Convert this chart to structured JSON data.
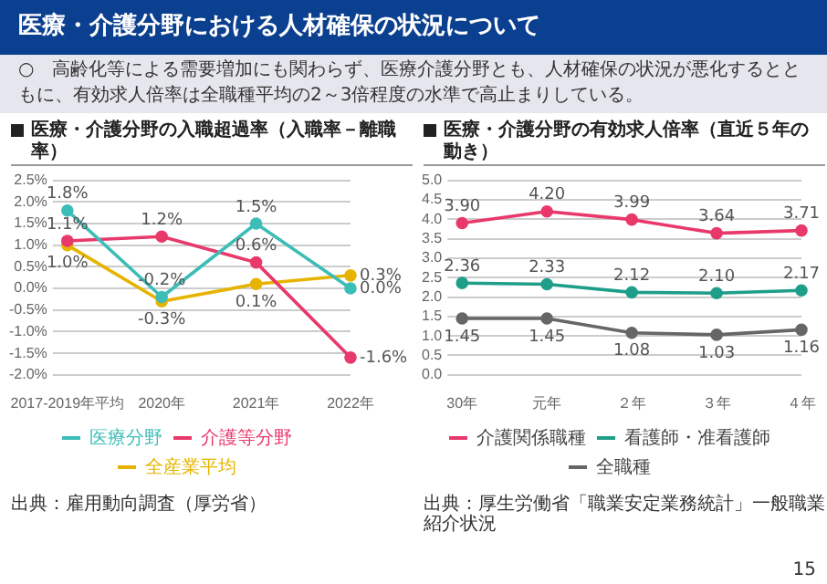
{
  "chart_data": [
    {
      "type": "line",
      "title": "医療・介護分野の入職超過率（入職率－離職率）",
      "categories": [
        "2017-2019年平均",
        "2020年",
        "2021年",
        "2022年"
      ],
      "series": [
        {
          "name": "医療分野",
          "color": "#3dbdb8",
          "values": [
            1.8,
            -0.2,
            1.5,
            0.0
          ],
          "value_labels": [
            "1.8%",
            "-0.2%",
            "1.5%",
            "0.0%"
          ]
        },
        {
          "name": "介護等分野",
          "color": "#e8396a",
          "values": [
            1.1,
            1.2,
            0.6,
            -1.6
          ],
          "value_labels": [
            "1.1%",
            "1.2%",
            "0.6%",
            "-1.6%"
          ]
        },
        {
          "name": "全産業平均",
          "color": "#e6b400",
          "values": [
            1.0,
            -0.3,
            0.1,
            0.3
          ],
          "value_labels": [
            "1.0%",
            "-0.3%",
            "0.1%",
            "0.3%"
          ]
        }
      ],
      "ylim": [
        -2,
        2.5
      ],
      "yticks": [
        {
          "value": -2,
          "label": "-2.0%"
        },
        {
          "value": -1.5,
          "label": "-1.5%"
        },
        {
          "value": -1,
          "label": "-1.0%"
        },
        {
          "value": -0.5,
          "label": "-0.5%"
        },
        {
          "value": 0,
          "label": "0.0%"
        },
        {
          "value": 0.5,
          "label": "0.5%"
        },
        {
          "value": 1,
          "label": "1.0%"
        },
        {
          "value": 1.5,
          "label": "1.5%"
        },
        {
          "value": 2,
          "label": "2.0%"
        },
        {
          "value": 2.5,
          "label": "2.5%"
        }
      ],
      "grid": "y",
      "legend": "bottom",
      "marker": "circle",
      "annotations": [
        "医療・介護分野における人材確保の状況について",
        "○　高齢化等による需要増加にも関わらず、医療介護分野とも、人材確保の状況が悪化するとともに、有効求人倍率は全職種平均の2～3倍程度の水準で高止まりしている。",
        "出典：雇用動向調査（厚労省）"
      ]
    },
    {
      "type": "line",
      "title": "医療・介護分野の有効求人倍率（直近５年の動き）",
      "categories": [
        "30年",
        "元年",
        "２年",
        "３年",
        "４年"
      ],
      "series": [
        {
          "name": "介護関係職種",
          "color": "#e8396a",
          "values": [
            3.9,
            4.2,
            3.99,
            3.64,
            3.71
          ],
          "value_labels": [
            "3.90",
            "4.20",
            "3.99",
            "3.64",
            "3.71"
          ]
        },
        {
          "name": "看護師・准看護師",
          "color": "#1f9e8a",
          "values": [
            2.36,
            2.33,
            2.12,
            2.1,
            2.17
          ],
          "value_labels": [
            "2.36",
            "2.33",
            "2.12",
            "2.10",
            "2.17"
          ]
        },
        {
          "name": "全職種",
          "color": "#666666",
          "values": [
            1.45,
            1.45,
            1.08,
            1.03,
            1.16
          ],
          "value_labels": [
            "1.45",
            "1.45",
            "1.08",
            "1.03",
            "1.16"
          ]
        }
      ],
      "ylim": [
        0,
        5
      ],
      "yticks": [
        {
          "value": 0,
          "label": "0.0"
        },
        {
          "value": 0.5,
          "label": "0.5"
        },
        {
          "value": 1,
          "label": "1.0"
        },
        {
          "value": 1.5,
          "label": "1.5"
        },
        {
          "value": 2,
          "label": "2.0"
        },
        {
          "value": 2.5,
          "label": "2.5"
        },
        {
          "value": 3,
          "label": "3.0"
        },
        {
          "value": 3.5,
          "label": "3.5"
        },
        {
          "value": 4,
          "label": "4.0"
        },
        {
          "value": 4.5,
          "label": "4.5"
        },
        {
          "value": 5,
          "label": "5.0"
        }
      ],
      "grid": "y",
      "legend": "bottom",
      "marker": "circle",
      "annotations": [
        "出典：厚生労働省「職業安定業務統計」一般職業紹介状況",
        "15"
      ]
    }
  ]
}
